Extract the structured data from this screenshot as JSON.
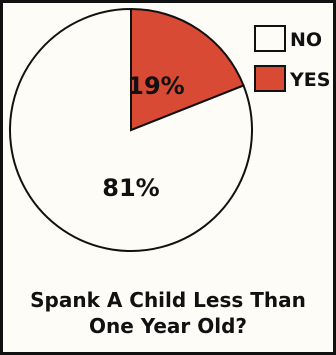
{
  "chart_data": {
    "type": "pie",
    "title_lines": [
      "Spank A Child Less Than",
      "One Year Old?"
    ],
    "slices": [
      {
        "label": "NO",
        "value": 81,
        "value_label": "81%",
        "color": "#fdfcf6"
      },
      {
        "label": "YES",
        "value": 19,
        "value_label": "19%",
        "color": "#d94a34"
      }
    ],
    "legend_position": "top-right",
    "outline_color": "#111111"
  }
}
